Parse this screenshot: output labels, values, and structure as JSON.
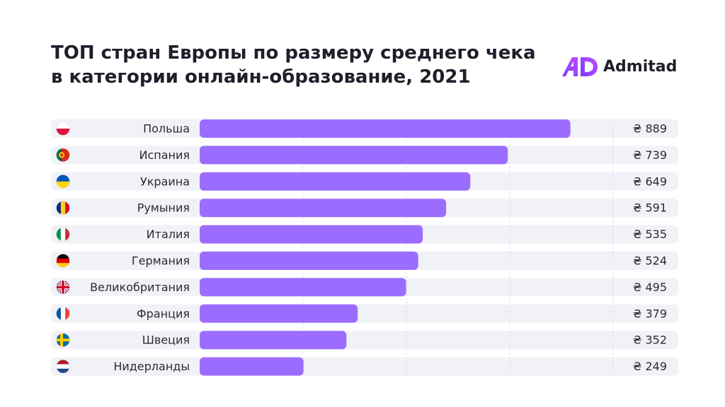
{
  "title_line1": "ТОП стран Европы по размеру среднего чека",
  "title_line2": "в категории онлайн-образование, 2021",
  "brand": "Admitad",
  "colors": {
    "bar": "#9b6dff",
    "row_bg": "#f1f1f8",
    "text": "#2a2a35",
    "grid": "#ffffff"
  },
  "chart_data": {
    "type": "bar",
    "orientation": "horizontal",
    "currency_symbol": "₴",
    "categories": [
      "Польша",
      "Испания",
      "Украина",
      "Румыния",
      "Италия",
      "Германия",
      "Великобритания",
      "Франция",
      "Швеция",
      "Нидерланды"
    ],
    "flags": [
      "flag-pl-icon",
      "flag-pt-icon",
      "flag-ua-icon",
      "flag-ro-icon",
      "flag-it-icon",
      "flag-de-icon",
      "flag-gb-icon",
      "flag-fr-icon",
      "flag-se-icon",
      "flag-nl-icon"
    ],
    "value_labels": [
      "₴ 889",
      "₴ 739",
      "₴ 649",
      "₴ 591",
      "₴ 535",
      "₴ 524",
      "₴ 495",
      "₴ 379",
      "₴ 352",
      "₴ 249"
    ],
    "values": [
      889,
      739,
      649,
      591,
      535,
      524,
      495,
      379,
      352,
      249
    ],
    "xlim": [
      0,
      1000
    ],
    "grid": true
  }
}
